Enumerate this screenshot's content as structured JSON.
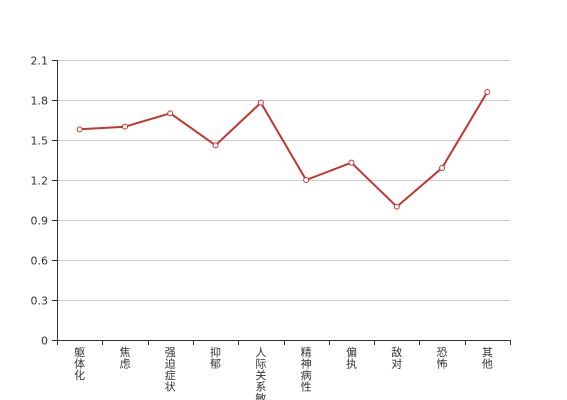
{
  "chart_data": {
    "type": "line",
    "categories": [
      "躯体化",
      "焦虑",
      "强迫症状",
      "抑郁",
      "人际关系敏感",
      "精神病性",
      "偏执",
      "敌对",
      "恐怖",
      "其他"
    ],
    "series": [
      {
        "values": [
          1.58,
          1.6,
          1.7,
          1.46,
          1.78,
          1.2,
          1.33,
          1.0,
          1.29,
          1.86
        ]
      }
    ],
    "yticks": [
      "0",
      "0.3",
      "0.6",
      "0.9",
      "1.2",
      "1.5",
      "1.8",
      "2.1"
    ],
    "ylim": [
      0,
      2.1
    ],
    "grid": true,
    "line_color": "#c23531",
    "grid_color": "#cccccc",
    "axis_color": "#333333"
  }
}
